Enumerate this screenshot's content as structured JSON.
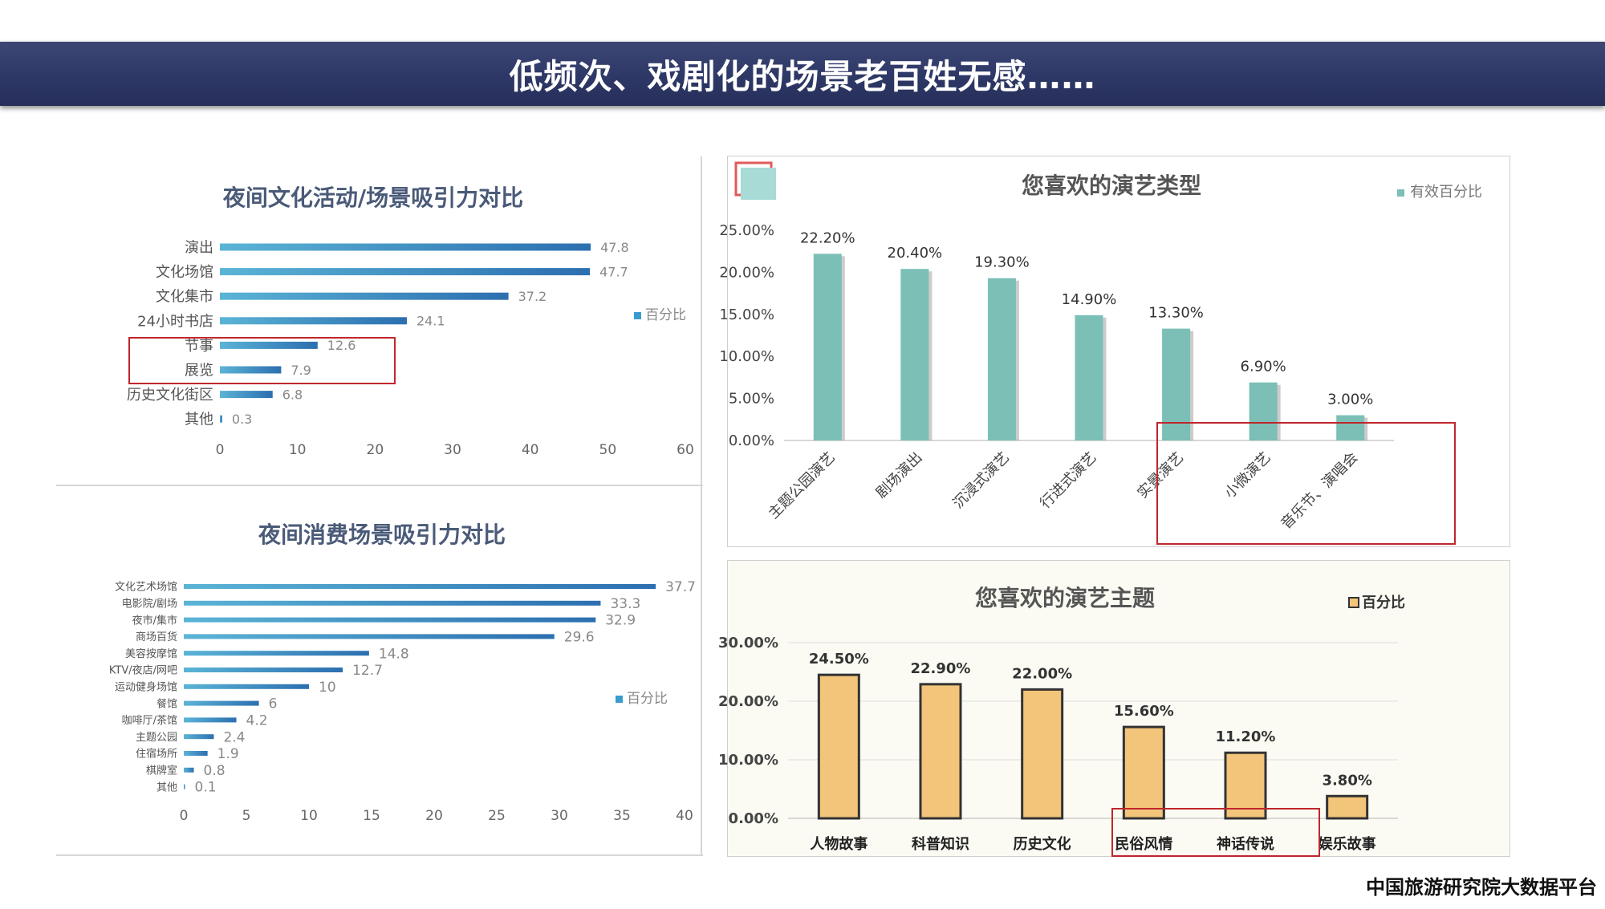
{
  "header": {
    "title": "低频次、戏剧化的场景老百姓无感……"
  },
  "footer": {
    "source": "中国旅游研究院大数据平台"
  },
  "colors": {
    "banner": "#2e3866",
    "bar_blue": "#3a88c4",
    "bar_teal": "#7bbfb6",
    "bar_orange": "#f2c57a",
    "highlight": "#c0262d"
  },
  "chart_data": [
    {
      "id": "night_culture",
      "type": "bar",
      "orientation": "horizontal",
      "title": "夜间文化活动/场景吸引力对比",
      "categories": [
        "演出",
        "文化场馆",
        "文化集市",
        "24小时书店",
        "节事",
        "展览",
        "历史文化街区",
        "其他"
      ],
      "values": [
        47.8,
        47.7,
        37.2,
        24.1,
        12.6,
        7.9,
        6.8,
        0.3
      ],
      "value_labels": [
        "47.8",
        "47.7",
        "37.2",
        "24.1",
        "12.6",
        "7.9",
        "6.8",
        "0.3"
      ],
      "xlim": [
        0,
        60
      ],
      "xticks": [
        "0",
        "10",
        "20",
        "30",
        "40",
        "50",
        "60"
      ],
      "legend": "百分比",
      "highlighted": [
        "节事",
        "展览"
      ]
    },
    {
      "id": "night_consumption",
      "type": "bar",
      "orientation": "horizontal",
      "title": "夜间消费场景吸引力对比",
      "categories": [
        "文化艺术场馆",
        "电影院/剧场",
        "夜市/集市",
        "商场百货",
        "美容按摩馆",
        "KTV/夜店/网吧",
        "运动健身场馆",
        "餐馆",
        "咖啡厅/茶馆",
        "主题公园",
        "住宿场所",
        "棋牌室",
        "其他"
      ],
      "values": [
        37.7,
        33.3,
        32.9,
        29.6,
        14.8,
        12.7,
        10,
        6,
        4.2,
        2.4,
        1.9,
        0.8,
        0.1
      ],
      "value_labels": [
        "37.7",
        "33.3",
        "32.9",
        "29.6",
        "14.8",
        "12.7",
        "10",
        "6",
        "4.2",
        "2.4",
        "1.9",
        "0.8",
        "0.1"
      ],
      "xlim": [
        0,
        40
      ],
      "xticks": [
        "0",
        "5",
        "10",
        "15",
        "20",
        "25",
        "30",
        "35",
        "40"
      ],
      "legend": "百分比"
    },
    {
      "id": "show_types",
      "type": "bar",
      "title": "您喜欢的演艺类型",
      "categories": [
        "主题公园演艺",
        "剧场演出",
        "沉浸式演艺",
        "行进式演艺",
        "实景演艺",
        "小微演艺",
        "音乐节、演唱会"
      ],
      "values": [
        22.2,
        20.4,
        19.3,
        14.9,
        13.3,
        6.9,
        3.0
      ],
      "value_labels": [
        "22.20%",
        "20.40%",
        "19.30%",
        "14.90%",
        "13.30%",
        "6.90%",
        "3.00%"
      ],
      "ylim": [
        0,
        25
      ],
      "yticks": [
        "0.00%",
        "5.00%",
        "10.00%",
        "15.00%",
        "20.00%",
        "25.00%"
      ],
      "legend": "有效百分比",
      "highlighted": [
        "实景演艺",
        "小微演艺",
        "音乐节、演唱会"
      ]
    },
    {
      "id": "show_themes",
      "type": "bar",
      "title": "您喜欢的演艺主题",
      "categories": [
        "人物故事",
        "科普知识",
        "历史文化",
        "民俗风情",
        "神话传说",
        "娱乐故事"
      ],
      "values": [
        24.5,
        22.9,
        22.0,
        15.6,
        11.2,
        3.8
      ],
      "value_labels": [
        "24.50%",
        "22.90%",
        "22.00%",
        "15.60%",
        "11.20%",
        "3.80%"
      ],
      "ylim": [
        0,
        30
      ],
      "yticks": [
        "0.00%",
        "10.00%",
        "20.00%",
        "30.00%"
      ],
      "legend": "百分比",
      "highlighted": [
        "民俗风情",
        "神话传说"
      ]
    }
  ]
}
